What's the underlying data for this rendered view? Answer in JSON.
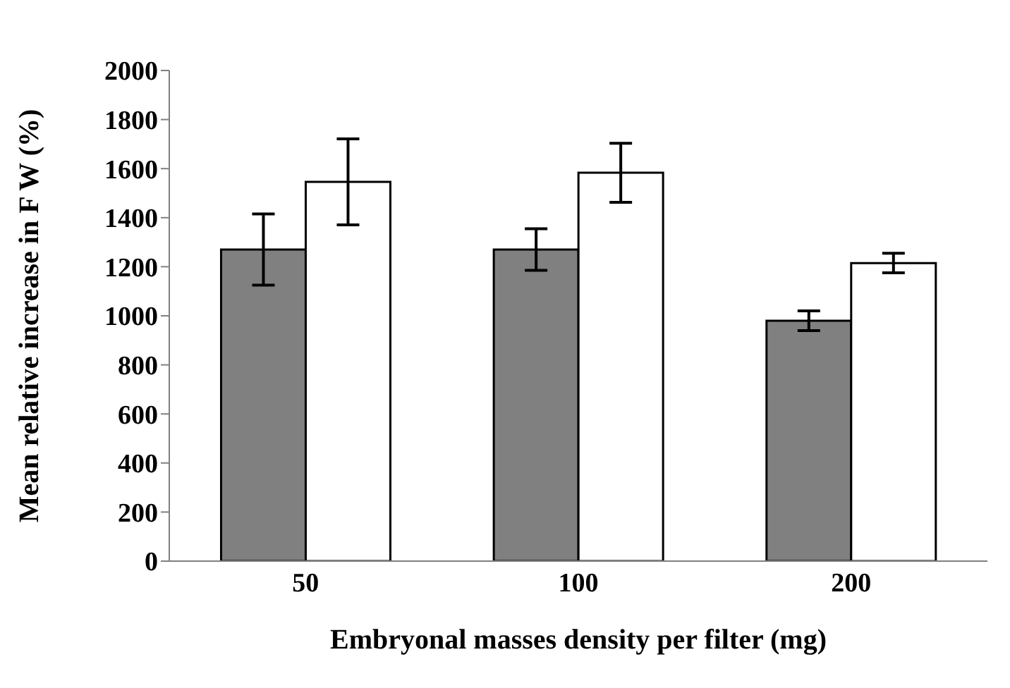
{
  "chart_data": {
    "type": "bar",
    "xlabel": "Embryonal masses density per filter (mg)",
    "ylabel": "Mean relative increase in F W (%)",
    "categories": [
      "50",
      "100",
      "200"
    ],
    "series": [
      {
        "color": "#808080",
        "values": [
          1270,
          1270,
          980
        ],
        "errors": [
          145,
          85,
          40
        ]
      },
      {
        "color": "#ffffff",
        "values": [
          1546,
          1583,
          1215
        ],
        "errors": [
          175,
          120,
          40
        ]
      }
    ],
    "ylim": [
      0,
      2000
    ],
    "yticks": [
      0,
      200,
      400,
      600,
      800,
      1000,
      1200,
      1400,
      1600,
      1800,
      2000
    ],
    "grid": false
  }
}
